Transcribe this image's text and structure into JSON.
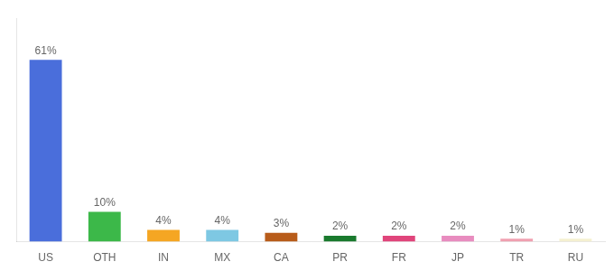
{
  "chart_data": {
    "type": "bar",
    "categories": [
      "US",
      "OTH",
      "IN",
      "MX",
      "CA",
      "PR",
      "FR",
      "JP",
      "TR",
      "RU"
    ],
    "values": [
      61,
      10,
      4,
      4,
      3,
      2,
      2,
      2,
      1,
      1
    ],
    "value_labels": [
      "61%",
      "10%",
      "4%",
      "4%",
      "3%",
      "2%",
      "2%",
      "2%",
      "1%",
      "1%"
    ],
    "colors": [
      "#4a6edb",
      "#3cb849",
      "#f5a623",
      "#7ec8e3",
      "#b85c1a",
      "#1a7a2e",
      "#e0457b",
      "#e88cbf",
      "#f0a0b0",
      "#f5f0d0"
    ],
    "data_labels": true,
    "ylim": [
      0,
      75
    ],
    "grid": false,
    "tick_labels": "x"
  }
}
